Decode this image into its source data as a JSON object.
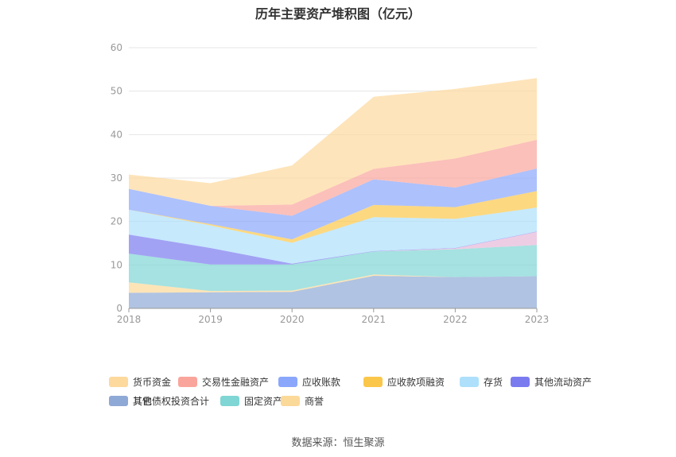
{
  "title": "历年主要资产堆积图（亿元）",
  "source": "数据来源：恒生聚源",
  "chart_data": {
    "type": "area",
    "stacked": true,
    "categories": [
      "2018",
      "2019",
      "2020",
      "2021",
      "2022",
      "2023"
    ],
    "ylim": [
      0,
      60
    ],
    "yticks": [
      "0",
      "10",
      "20",
      "30",
      "40",
      "50",
      "60"
    ],
    "grid": true,
    "legend_position": "bottom",
    "series": [
      {
        "name": "其它",
        "color": "#8fa9d6",
        "values": [
          3.6,
          3.7,
          3.8,
          7.5,
          7.2,
          7.4
        ]
      },
      {
        "name": "商誉",
        "color": "#fbd999",
        "values": [
          2.4,
          0.3,
          0.3,
          0.3,
          0.0,
          0.0
        ]
      },
      {
        "name": "固定资产",
        "color": "#7fd6d4",
        "values": [
          6.6,
          6.1,
          6.0,
          5.3,
          6.4,
          7.2
        ]
      },
      {
        "name": "其他债权投资合计",
        "color": "#e6b8d9",
        "values": [
          0.0,
          0.0,
          0.0,
          0.0,
          0.2,
          3.0
        ]
      },
      {
        "name": "其他流动资产",
        "color": "#7b7bf0",
        "values": [
          4.4,
          3.8,
          0.2,
          0.1,
          0.1,
          0.1
        ]
      },
      {
        "name": "存货",
        "color": "#aee0fb",
        "values": [
          5.7,
          5.2,
          4.8,
          7.8,
          6.7,
          5.5
        ]
      },
      {
        "name": "应收款项融资",
        "color": "#fbc74a",
        "values": [
          0.0,
          0.3,
          0.8,
          2.8,
          2.7,
          3.8
        ]
      },
      {
        "name": "应收账款",
        "color": "#8aa7fb",
        "values": [
          4.8,
          4.2,
          5.4,
          5.9,
          4.5,
          5.2
        ]
      },
      {
        "name": "交易性金融资产",
        "color": "#f9a59c",
        "values": [
          0.0,
          0.0,
          2.6,
          2.4,
          6.7,
          6.6
        ]
      },
      {
        "name": "货币资金",
        "color": "#fdd99d",
        "values": [
          3.3,
          5.2,
          9.0,
          16.6,
          16.0,
          14.2
        ]
      }
    ]
  },
  "legend_items": [
    {
      "label": "货币资金",
      "color": "#fdd99d"
    },
    {
      "label": "交易性金融资产",
      "color": "#f9a59c"
    },
    {
      "label": "应收账款",
      "color": "#8aa7fb"
    },
    {
      "label": "应收款项融资",
      "color": "#fbc74a"
    },
    {
      "label": "存货",
      "color": "#aee0fb"
    },
    {
      "label": "其他流动资产",
      "color": "#7b7bf0"
    },
    {
      "label": "其他债权投资合计",
      "color": "#e6b8d9"
    },
    {
      "label": "固定资产",
      "color": "#7fd6d4"
    },
    {
      "label": "商誉",
      "color": "#fbd999"
    },
    {
      "label": "其它",
      "color": "#8fa9d6"
    }
  ]
}
